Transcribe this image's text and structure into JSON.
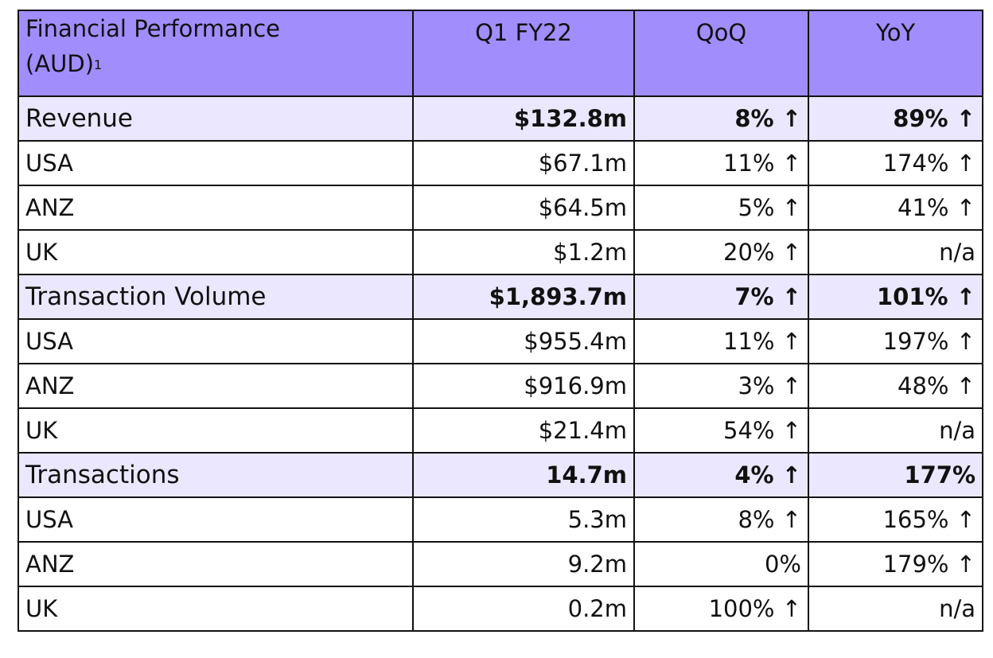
{
  "header": {
    "label_line1": "Financial Performance",
    "label_line2": "(AUD)",
    "label_sup": "1",
    "col_q1": "Q1 FY22",
    "col_qoq": "QoQ",
    "col_yoy": "YoY"
  },
  "rows": [
    {
      "label": "Revenue",
      "q1": "$132.8m",
      "qoq": "8% ↑",
      "yoy": "89% ↑"
    },
    {
      "label": "USA",
      "q1": "$67.1m",
      "qoq": "11% ↑",
      "yoy": "174% ↑"
    },
    {
      "label": "ANZ",
      "q1": "$64.5m",
      "qoq": "5% ↑",
      "yoy": "41% ↑"
    },
    {
      "label": "UK",
      "q1": "$1.2m",
      "qoq": "20% ↑",
      "yoy": "n/a"
    },
    {
      "label": "Transaction Volume",
      "q1": "$1,893.7m",
      "qoq": "7% ↑",
      "yoy": "101% ↑"
    },
    {
      "label": "USA",
      "q1": "$955.4m",
      "qoq": "11% ↑",
      "yoy": "197% ↑"
    },
    {
      "label": "ANZ",
      "q1": "$916.9m",
      "qoq": "3% ↑",
      "yoy": "48% ↑"
    },
    {
      "label": "UK",
      "q1": "$21.4m",
      "qoq": "54% ↑",
      "yoy": "n/a"
    },
    {
      "label": "Transactions",
      "q1": "14.7m",
      "qoq": "4% ↑",
      "yoy": "177%"
    },
    {
      "label": "USA",
      "q1": "5.3m",
      "qoq": "8% ↑",
      "yoy": "165% ↑"
    },
    {
      "label": "ANZ",
      "q1": "9.2m",
      "qoq": "0%",
      "yoy": "179% ↑"
    },
    {
      "label": "UK",
      "q1": "0.2m",
      "qoq": "100% ↑",
      "yoy": "n/a"
    }
  ],
  "colors": {
    "header_bg": "#a28dfd",
    "total_row_bg": "#ebe7fe",
    "border": "#111111"
  }
}
